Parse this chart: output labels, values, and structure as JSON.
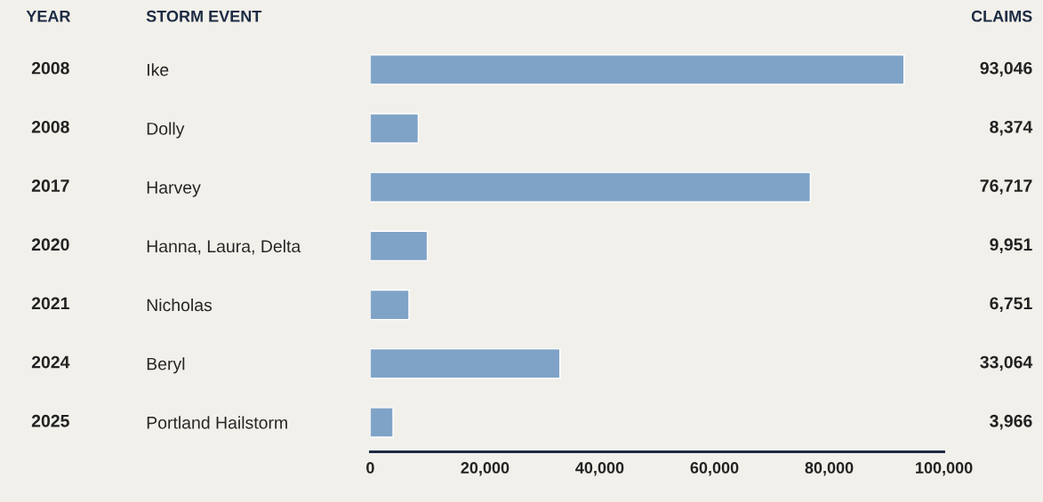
{
  "chart_data": {
    "type": "bar",
    "orientation": "horizontal",
    "ylabel": "STORM EVENT",
    "categories": [
      "Ike",
      "Dolly",
      "Harvey",
      "Hanna, Laura, Delta",
      "Nicholas",
      "Beryl",
      "Portland Hailstorm"
    ],
    "values": [
      93046,
      8374,
      76717,
      9951,
      6751,
      33064,
      3966
    ],
    "value_labels": [
      "93,046",
      "8,374",
      "76,717",
      "9,951",
      "6,751",
      "33,064",
      "3,966"
    ],
    "color": "#7fa3c7",
    "xlim": [
      0,
      100000
    ],
    "xticks": [
      {
        "value": 0,
        "label": "0"
      },
      {
        "value": 20000,
        "label": "20,000"
      },
      {
        "value": 40000,
        "label": "40,000"
      },
      {
        "value": 60000,
        "label": "60,000"
      },
      {
        "value": 80000,
        "label": "80,000"
      },
      {
        "value": 100000,
        "label": "100,000"
      }
    ],
    "annotations": [
      "YEAR",
      "CLAIMS",
      "2008",
      "2008",
      "2017",
      "2020",
      "2021",
      "2024",
      "2025"
    ],
    "grid": false,
    "legend": false
  }
}
